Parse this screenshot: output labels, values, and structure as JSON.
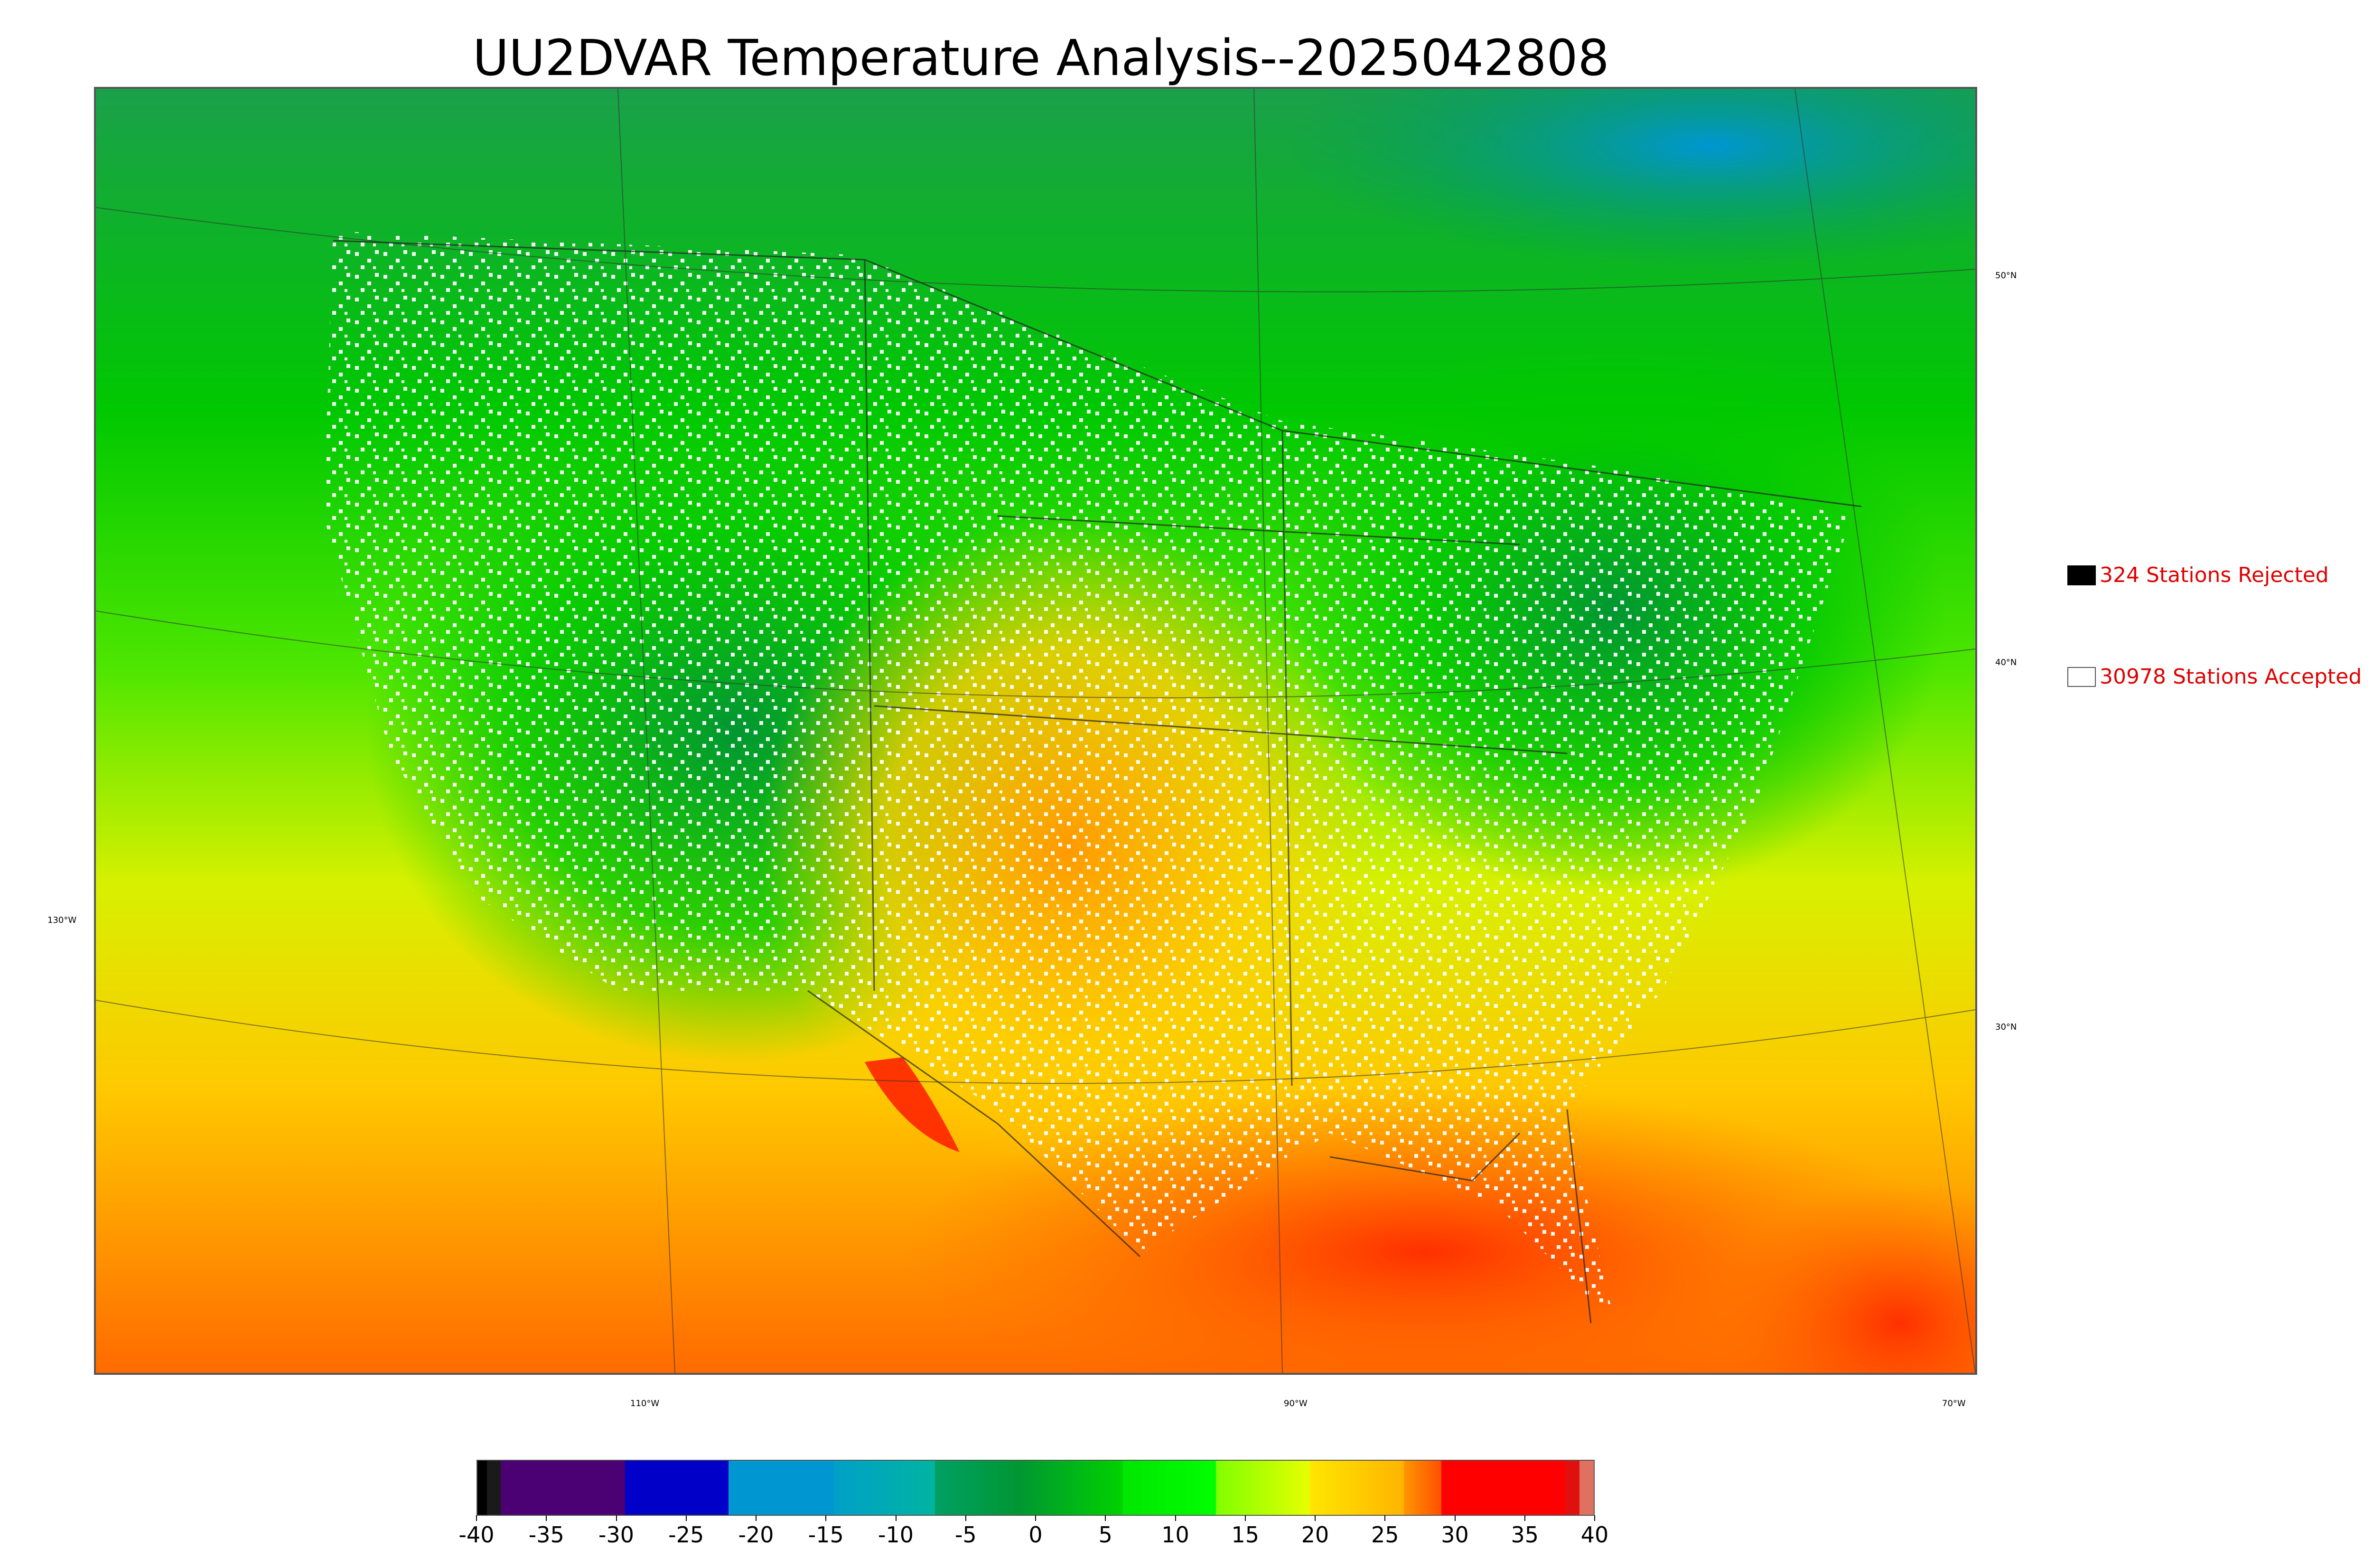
{
  "title": "UU2DVAR Temperature Analysis--2025042808",
  "map": {
    "latitude_labels": [
      "50°N",
      "40°N",
      "30°N"
    ],
    "longitude_labels": [
      "130°W",
      "110°W",
      "90°W",
      "70°W"
    ]
  },
  "legend": {
    "rejected": {
      "label": "324 Stations Rejected",
      "swatch_color": "#000000"
    },
    "accepted": {
      "label": "30978 Stations Accepted",
      "swatch_color": "#ffffff"
    }
  },
  "colorbar": {
    "ticks": [
      "-40",
      "-35",
      "-30",
      "-25",
      "-20",
      "-15",
      "-10",
      "-5",
      "0",
      "5",
      "10",
      "15",
      "20",
      "25",
      "30",
      "35",
      "40"
    ],
    "segments": [
      {
        "color": "#000000"
      },
      {
        "color": "#1a1a1a"
      },
      {
        "color": "#4b0073"
      },
      {
        "color": "#0000c8"
      },
      {
        "color": "#0096d2"
      },
      {
        "color": "#00b4b4"
      },
      {
        "color": "#009632"
      },
      {
        "color": "#00c800"
      },
      {
        "color": "#00ff00"
      },
      {
        "color": "#c8ff00"
      },
      {
        "color": "#ffd700"
      },
      {
        "color": "#ff8c00"
      },
      {
        "color": "#ff0000"
      },
      {
        "color": "#e01010"
      },
      {
        "color": "#d2b48c"
      }
    ]
  }
}
